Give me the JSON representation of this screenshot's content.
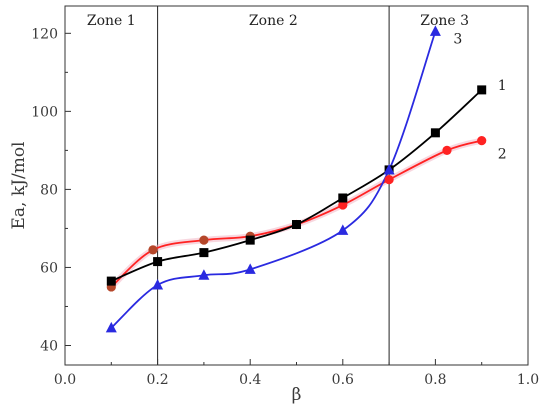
{
  "chart_data": {
    "type": "line",
    "xlabel": "β",
    "ylabel": "Ea, kJ/mol",
    "xlim": [
      0.0,
      1.0
    ],
    "ylim": [
      35,
      127
    ],
    "x_ticks": [
      "0.0",
      "0.2",
      "0.4",
      "0.6",
      "0.8",
      "1.0"
    ],
    "x_tick_values": [
      0.0,
      0.2,
      0.4,
      0.6,
      0.8,
      1.0
    ],
    "y_ticks": [
      "40",
      "60",
      "80",
      "100",
      "120"
    ],
    "y_tick_values": [
      40,
      60,
      80,
      100,
      120
    ],
    "grid": false,
    "zones": [
      {
        "label": "Zone 1",
        "x": 0.1
      },
      {
        "label": "Zone 2",
        "x": 0.45
      },
      {
        "label": "Zone 3",
        "x": 0.82
      }
    ],
    "zone_boundaries": [
      0.2,
      0.7
    ],
    "series": [
      {
        "name": "1",
        "label": "1",
        "color": "#000000",
        "marker": "square",
        "x": [
          0.1,
          0.2,
          0.3,
          0.4,
          0.5,
          0.6,
          0.7,
          0.8,
          0.9
        ],
        "y": [
          56.5,
          61.5,
          63.8,
          67.0,
          71.0,
          77.8,
          85.0,
          94.5,
          105.5
        ]
      },
      {
        "name": "2",
        "label": "2",
        "color": "#ff2222",
        "marker": "circle",
        "x": [
          0.1,
          0.19,
          0.3,
          0.4,
          0.5,
          0.6,
          0.7,
          0.825,
          0.9
        ],
        "y": [
          55.0,
          64.5,
          67.0,
          68.0,
          71.0,
          76.0,
          82.5,
          90.0,
          92.5
        ]
      },
      {
        "name": "3",
        "label": "3",
        "color": "#2a2ae0",
        "marker": "triangle",
        "x": [
          0.1,
          0.2,
          0.3,
          0.4,
          0.6,
          0.7,
          0.8
        ],
        "y": [
          44.5,
          55.5,
          58.0,
          59.5,
          69.5,
          85.0,
          120.5
        ]
      }
    ]
  }
}
